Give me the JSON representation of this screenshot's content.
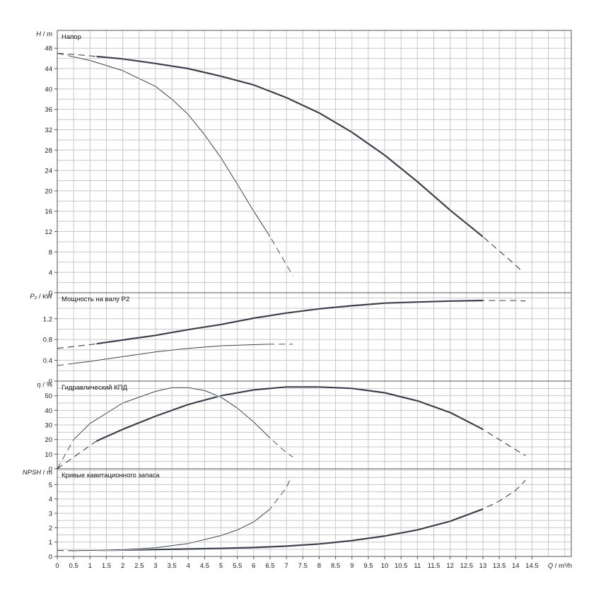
{
  "chart_data": {
    "type": "line",
    "x_label": {
      "sym": "Q",
      "unit": "m³/h"
    },
    "x_ticks": [
      0,
      0.5,
      1,
      1.5,
      2,
      2.5,
      3,
      3.5,
      4,
      4.5,
      5,
      5.5,
      6,
      6.5,
      7,
      7.5,
      8,
      8.5,
      9,
      9.5,
      10,
      10.5,
      11,
      11.5,
      12,
      12.5,
      13,
      13.5,
      14,
      14.5
    ],
    "x_tick_labels": [
      "0",
      "0.5",
      "1",
      "1.5",
      "2",
      "2.5",
      "3",
      "3.5",
      "4",
      "4.5",
      "5",
      "5.5",
      "6",
      "6.5",
      "7",
      "7.5",
      "8",
      "8.5",
      "9",
      "9.5",
      "10",
      "10.5",
      "11",
      "11.5",
      "12",
      "12.5",
      "13",
      "13.5",
      "14",
      "14.5"
    ],
    "xlim": [
      0,
      15.7
    ],
    "grid": true,
    "panels": [
      {
        "id": "head",
        "title": "Напор",
        "y_sym": "H",
        "y_unit": "m",
        "ylim": [
          0,
          51.5
        ],
        "y_ticks": [
          0,
          4,
          8,
          12,
          16,
          20,
          24,
          28,
          32,
          36,
          40,
          44,
          48
        ],
        "y_tick_labels": [
          "0",
          "4",
          "8",
          "12",
          "16",
          "20",
          "24",
          "28",
          "32",
          "36",
          "40",
          "44",
          "48"
        ],
        "series": [
          {
            "points": [
              [
                0,
                47
              ],
              [
                0.5,
                46.8
              ],
              [
                1,
                46.5
              ],
              [
                2,
                45.9
              ],
              [
                3,
                45.0
              ],
              [
                4,
                44.0
              ],
              [
                5,
                42.5
              ],
              [
                6,
                40.8
              ],
              [
                7,
                38.3
              ],
              [
                8,
                35.3
              ],
              [
                9,
                31.5
              ],
              [
                10,
                27.0
              ],
              [
                11,
                21.8
              ],
              [
                12,
                16.2
              ],
              [
                13,
                11.0
              ],
              [
                13.5,
                8.2
              ],
              [
                14,
                5.4
              ],
              [
                14.2,
                4.2
              ]
            ],
            "solid_x": [
              1.2,
              13
            ]
          },
          {
            "points": [
              [
                0,
                47
              ],
              [
                1,
                45.6
              ],
              [
                2,
                43.6
              ],
              [
                3,
                40.5
              ],
              [
                3.5,
                38.0
              ],
              [
                4,
                35.0
              ],
              [
                4.5,
                31.0
              ],
              [
                5,
                26.5
              ],
              [
                5.5,
                21.3
              ],
              [
                6,
                16.0
              ],
              [
                6.5,
                11.0
              ],
              [
                7,
                5.5
              ],
              [
                7.2,
                3.3
              ]
            ],
            "solid_x": [
              0.5,
              6.5
            ]
          }
        ]
      },
      {
        "id": "power",
        "title": "Мощность на валу P2",
        "y_sym": "P₂",
        "y_unit": "kW",
        "ylim": [
          0,
          1.7
        ],
        "y_ticks": [
          0,
          0.4,
          0.8,
          1.2
        ],
        "y_tick_labels": [
          "0",
          "0.4",
          "0.8",
          "1.2"
        ],
        "series": [
          {
            "points": [
              [
                0,
                0.63
              ],
              [
                1,
                0.7
              ],
              [
                2,
                0.79
              ],
              [
                3,
                0.88
              ],
              [
                4,
                0.99
              ],
              [
                5,
                1.09
              ],
              [
                6,
                1.21
              ],
              [
                7,
                1.31
              ],
              [
                8,
                1.39
              ],
              [
                9,
                1.45
              ],
              [
                10,
                1.5
              ],
              [
                11,
                1.52
              ],
              [
                12,
                1.54
              ],
              [
                13,
                1.55
              ],
              [
                14,
                1.55
              ],
              [
                14.3,
                1.54
              ]
            ],
            "solid_x": [
              1.2,
              13
            ]
          },
          {
            "points": [
              [
                0,
                0.3
              ],
              [
                1,
                0.38
              ],
              [
                2,
                0.47
              ],
              [
                3,
                0.56
              ],
              [
                4,
                0.63
              ],
              [
                5,
                0.68
              ],
              [
                6,
                0.7
              ],
              [
                6.5,
                0.71
              ],
              [
                7.2,
                0.71
              ]
            ],
            "solid_x": [
              0.5,
              6.5
            ]
          }
        ]
      },
      {
        "id": "efficiency",
        "title": "Гидравлический КПД",
        "y_sym": "η",
        "y_unit": "%",
        "ylim": [
          0,
          60
        ],
        "y_ticks": [
          0,
          10,
          20,
          30,
          40,
          50
        ],
        "y_tick_labels": [
          "0",
          "10",
          "20",
          "30",
          "40",
          "50"
        ],
        "series": [
          {
            "points": [
              [
                0,
                0
              ],
              [
                0.5,
                8
              ],
              [
                1.2,
                19
              ],
              [
                2,
                27
              ],
              [
                3,
                36
              ],
              [
                4,
                44
              ],
              [
                5,
                50
              ],
              [
                6,
                54
              ],
              [
                7,
                56
              ],
              [
                8,
                56
              ],
              [
                9,
                55
              ],
              [
                10,
                52
              ],
              [
                11,
                46.5
              ],
              [
                12,
                38.5
              ],
              [
                13,
                27
              ],
              [
                13.5,
                20
              ],
              [
                14,
                13
              ],
              [
                14.3,
                9
              ]
            ],
            "solid_x": [
              1.2,
              13
            ]
          },
          {
            "points": [
              [
                0,
                0
              ],
              [
                0.5,
                20
              ],
              [
                1,
                31
              ],
              [
                2,
                45
              ],
              [
                3,
                53
              ],
              [
                3.5,
                55.5
              ],
              [
                4,
                55.5
              ],
              [
                4.5,
                53.5
              ],
              [
                5,
                49
              ],
              [
                5.5,
                41.5
              ],
              [
                6,
                32
              ],
              [
                6.5,
                21
              ],
              [
                7,
                11
              ],
              [
                7.2,
                8
              ]
            ],
            "solid_x": [
              0.5,
              6.5
            ]
          }
        ]
      },
      {
        "id": "npsh",
        "title": "Кривые кавитационного запаса",
        "y_sym": "NPSH",
        "y_unit": "m",
        "ylim": [
          0,
          6.1
        ],
        "y_ticks": [
          0,
          1,
          2,
          3,
          4,
          5
        ],
        "y_tick_labels": [
          "0",
          "1",
          "2",
          "3",
          "4",
          "5"
        ],
        "series": [
          {
            "points": [
              [
                0,
                0.42
              ],
              [
                0.5,
                0.4
              ],
              [
                1,
                0.42
              ],
              [
                2,
                0.45
              ],
              [
                3,
                0.48
              ],
              [
                4,
                0.52
              ],
              [
                5,
                0.56
              ],
              [
                6,
                0.62
              ],
              [
                7,
                0.72
              ],
              [
                8,
                0.87
              ],
              [
                9,
                1.1
              ],
              [
                10,
                1.42
              ],
              [
                11,
                1.85
              ],
              [
                12,
                2.45
              ],
              [
                13,
                3.3
              ],
              [
                13.5,
                3.85
              ],
              [
                14,
                4.6
              ],
              [
                14.3,
                5.3
              ]
            ],
            "solid_x": [
              1.2,
              13
            ]
          },
          {
            "points": [
              [
                0.5,
                0.4
              ],
              [
                1,
                0.42
              ],
              [
                2,
                0.48
              ],
              [
                3,
                0.6
              ],
              [
                4,
                0.9
              ],
              [
                5,
                1.45
              ],
              [
                5.5,
                1.85
              ],
              [
                6,
                2.4
              ],
              [
                6.5,
                3.3
              ],
              [
                7,
                4.8
              ],
              [
                7.1,
                5.3
              ]
            ],
            "solid_x": [
              0.5,
              6.5
            ]
          }
        ]
      }
    ]
  },
  "colors": {
    "curve": "#3a3f4a",
    "grid": "#c8c8c8",
    "frame": "#555555",
    "text": "#222222"
  }
}
